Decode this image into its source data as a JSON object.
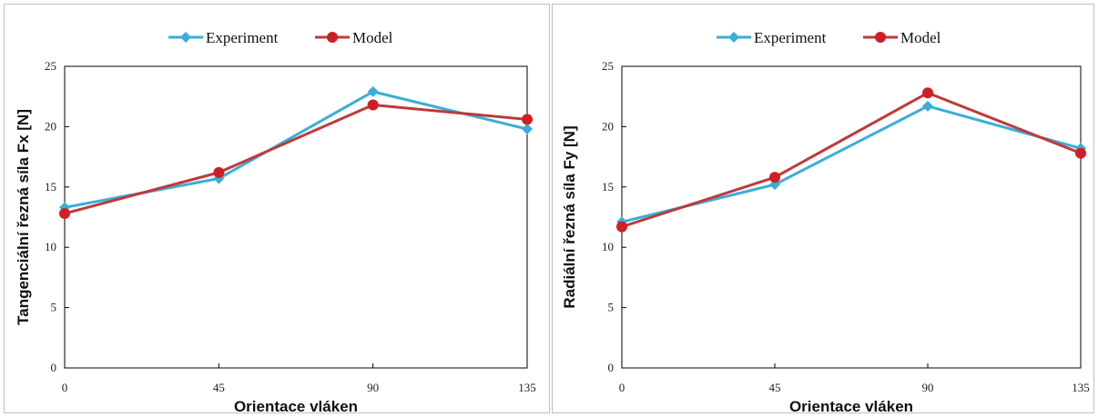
{
  "colors": {
    "experiment": "#3aaed8",
    "model": "#c0393b",
    "axis": "#000000",
    "border": "#bfbfbf"
  },
  "chart_data": [
    {
      "type": "line",
      "x": [
        0,
        45,
        90,
        135
      ],
      "categories": [
        "0",
        "45",
        "90",
        "135"
      ],
      "series": [
        {
          "name": "Experiment",
          "marker": "diamond",
          "values": [
            13.3,
            15.7,
            22.9,
            19.8
          ]
        },
        {
          "name": "Model",
          "marker": "circle",
          "values": [
            12.8,
            16.2,
            21.8,
            20.6
          ]
        }
      ],
      "xlabel": "Orientace vláken",
      "ylabel": "Tangenciální řezná síla Fx [N]",
      "ylim": [
        0,
        25
      ],
      "yticks": [
        "0",
        "5",
        "10",
        "15",
        "20",
        "25"
      ],
      "grid": false,
      "legend": "top-center"
    },
    {
      "type": "line",
      "x": [
        0,
        45,
        90,
        135
      ],
      "categories": [
        "0",
        "45",
        "90",
        "135"
      ],
      "series": [
        {
          "name": "Experiment",
          "marker": "diamond",
          "values": [
            12.1,
            15.2,
            21.7,
            18.2
          ]
        },
        {
          "name": "Model",
          "marker": "circle",
          "values": [
            11.7,
            15.8,
            22.8,
            17.8
          ]
        }
      ],
      "xlabel": "Orientace vláken",
      "ylabel": "Radiální řezná síla Fy [N]",
      "ylim": [
        0,
        25
      ],
      "yticks": [
        "0",
        "5",
        "10",
        "15",
        "20",
        "25"
      ],
      "grid": false,
      "legend": "top-center"
    }
  ]
}
